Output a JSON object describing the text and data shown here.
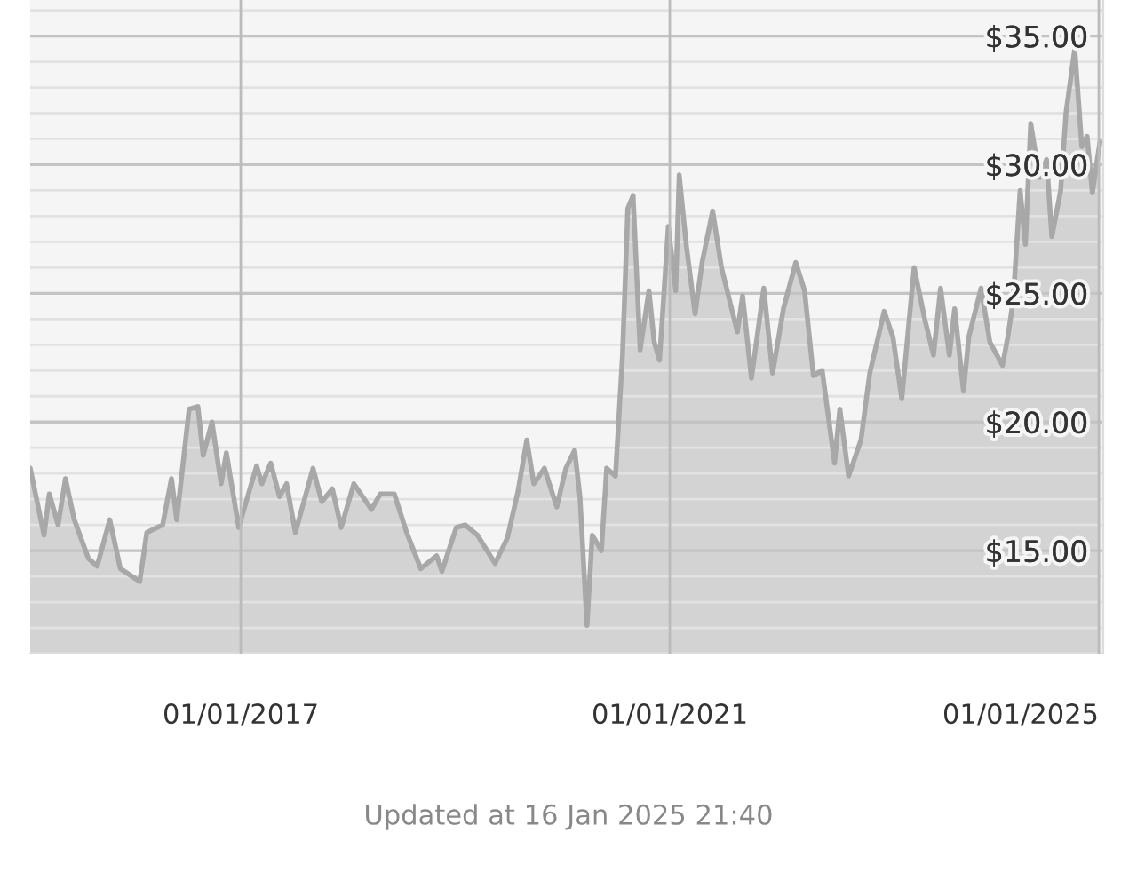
{
  "chart_data": {
    "type": "area",
    "x": [
      "2015-01-15",
      "2015-03-03",
      "2015-03-21",
      "2015-04-20",
      "2015-05-15",
      "2015-06-14",
      "2015-08-01",
      "2015-08-31",
      "2015-10-13",
      "2015-11-18",
      "2016-01-23",
      "2016-02-16",
      "2016-04-10",
      "2016-05-10",
      "2016-05-28",
      "2016-07-09",
      "2016-08-08",
      "2016-08-26",
      "2016-09-25",
      "2016-10-26",
      "2016-11-13",
      "2016-12-25",
      "2017-02-24",
      "2017-03-14",
      "2017-04-13",
      "2017-05-13",
      "2017-06-06",
      "2017-07-06",
      "2017-09-04",
      "2017-10-04",
      "2017-11-09",
      "2017-12-09",
      "2018-01-21",
      "2018-03-22",
      "2018-04-21",
      "2018-06-08",
      "2018-07-20",
      "2018-09-06",
      "2018-10-30",
      "2018-11-17",
      "2019-01-05",
      "2019-02-04",
      "2019-03-18",
      "2019-05-17",
      "2019-06-28",
      "2019-08-03",
      "2019-09-02",
      "2019-09-26",
      "2019-11-01",
      "2019-12-13",
      "2020-01-13",
      "2020-02-12",
      "2020-03-01",
      "2020-03-25",
      "2020-04-12",
      "2020-05-13",
      "2020-05-31",
      "2020-06-30",
      "2020-07-24",
      "2020-08-11",
      "2020-08-29",
      "2020-09-22",
      "2020-10-22",
      "2020-11-09",
      "2020-11-27",
      "2020-12-27",
      "2021-01-21",
      "2021-02-02",
      "2021-02-26",
      "2021-03-28",
      "2021-04-21",
      "2021-05-27",
      "2021-06-26",
      "2021-08-19",
      "2021-09-06",
      "2021-10-06",
      "2021-11-17",
      "2021-12-17",
      "2022-01-23",
      "2022-03-06",
      "2022-04-05",
      "2022-05-05",
      "2022-06-04",
      "2022-07-16",
      "2022-08-03",
      "2022-09-02",
      "2022-10-14",
      "2022-11-13",
      "2023-01-01",
      "2023-01-31",
      "2023-03-02",
      "2023-04-13",
      "2023-05-19",
      "2023-06-18",
      "2023-07-12",
      "2023-08-11",
      "2023-08-29",
      "2023-09-28",
      "2023-10-16",
      "2023-11-27",
      "2023-12-27",
      "2024-02-08",
      "2024-02-26",
      "2024-03-15",
      "2024-04-08",
      "2024-04-26",
      "2024-05-14",
      "2024-06-13",
      "2024-07-07",
      "2024-07-25",
      "2024-08-24",
      "2024-09-11",
      "2024-10-11",
      "2024-11-04",
      "2024-11-22",
      "2024-12-10",
      "2025-01-05"
    ],
    "series": [
      {
        "color": "#a8a8a8",
        "values": [
          18.2,
          15.6,
          17.2,
          16.0,
          17.8,
          16.2,
          14.7,
          14.4,
          16.2,
          14.3,
          13.8,
          15.7,
          16.0,
          17.8,
          16.2,
          20.5,
          20.6,
          18.7,
          20.0,
          17.6,
          18.8,
          15.9,
          18.3,
          17.6,
          18.4,
          17.1,
          17.6,
          15.7,
          18.2,
          16.9,
          17.4,
          15.9,
          17.6,
          16.6,
          17.2,
          17.2,
          15.7,
          14.3,
          14.8,
          14.2,
          15.9,
          16.0,
          15.6,
          14.5,
          15.5,
          17.3,
          19.3,
          17.6,
          18.2,
          16.7,
          18.2,
          18.9,
          17.1,
          12.1,
          15.6,
          15.0,
          18.2,
          17.9,
          22.6,
          28.3,
          28.8,
          22.8,
          25.1,
          23.1,
          22.4,
          27.6,
          25.1,
          29.6,
          26.9,
          24.2,
          26.2,
          28.2,
          26.0,
          23.5,
          24.9,
          21.7,
          25.2,
          21.9,
          24.4,
          26.2,
          25.1,
          21.8,
          22.0,
          18.4,
          20.5,
          17.9,
          19.3,
          21.9,
          24.3,
          23.3,
          20.9,
          26.0,
          24.0,
          22.6,
          25.2,
          22.6,
          24.4,
          21.2,
          23.3,
          25.2,
          23.1,
          22.2,
          23.3,
          24.7,
          29.0,
          26.9,
          31.6,
          29.5,
          30.2,
          27.2,
          29.0,
          32.0,
          34.5,
          30.7,
          31.1,
          28.9,
          30.9
        ]
      }
    ],
    "xlim": [
      "2015-01-15",
      "2025-01-16"
    ],
    "xticks": [
      {
        "value": "2017-01-01",
        "label": "01/01/2017"
      },
      {
        "value": "2021-01-01",
        "label": "01/01/2021"
      },
      {
        "value": "2025-01-01",
        "label": "01/01/2025"
      }
    ],
    "ylim": [
      11,
      36.4
    ],
    "yticks": [
      {
        "value": 11,
        "label": null
      },
      {
        "value": 12,
        "label": null
      },
      {
        "value": 13,
        "label": null
      },
      {
        "value": 14,
        "label": null
      },
      {
        "value": 15,
        "label": "$15.00"
      },
      {
        "value": 16,
        "label": null
      },
      {
        "value": 17,
        "label": null
      },
      {
        "value": 18,
        "label": null
      },
      {
        "value": 19,
        "label": null
      },
      {
        "value": 20,
        "label": "$20.00"
      },
      {
        "value": 21,
        "label": null
      },
      {
        "value": 22,
        "label": null
      },
      {
        "value": 23,
        "label": null
      },
      {
        "value": 24,
        "label": null
      },
      {
        "value": 25,
        "label": "$25.00"
      },
      {
        "value": 26,
        "label": null
      },
      {
        "value": 27,
        "label": null
      },
      {
        "value": 28,
        "label": null
      },
      {
        "value": 29,
        "label": null
      },
      {
        "value": 30,
        "label": "$30.00"
      },
      {
        "value": 31,
        "label": null
      },
      {
        "value": 32,
        "label": null
      },
      {
        "value": 33,
        "label": null
      },
      {
        "value": 34,
        "label": null
      },
      {
        "value": 35,
        "label": "$35.00"
      },
      {
        "value": 36,
        "label": null
      }
    ],
    "grid": true,
    "annotations": [
      "Updated at 16 Jan 2025 21:40"
    ]
  }
}
